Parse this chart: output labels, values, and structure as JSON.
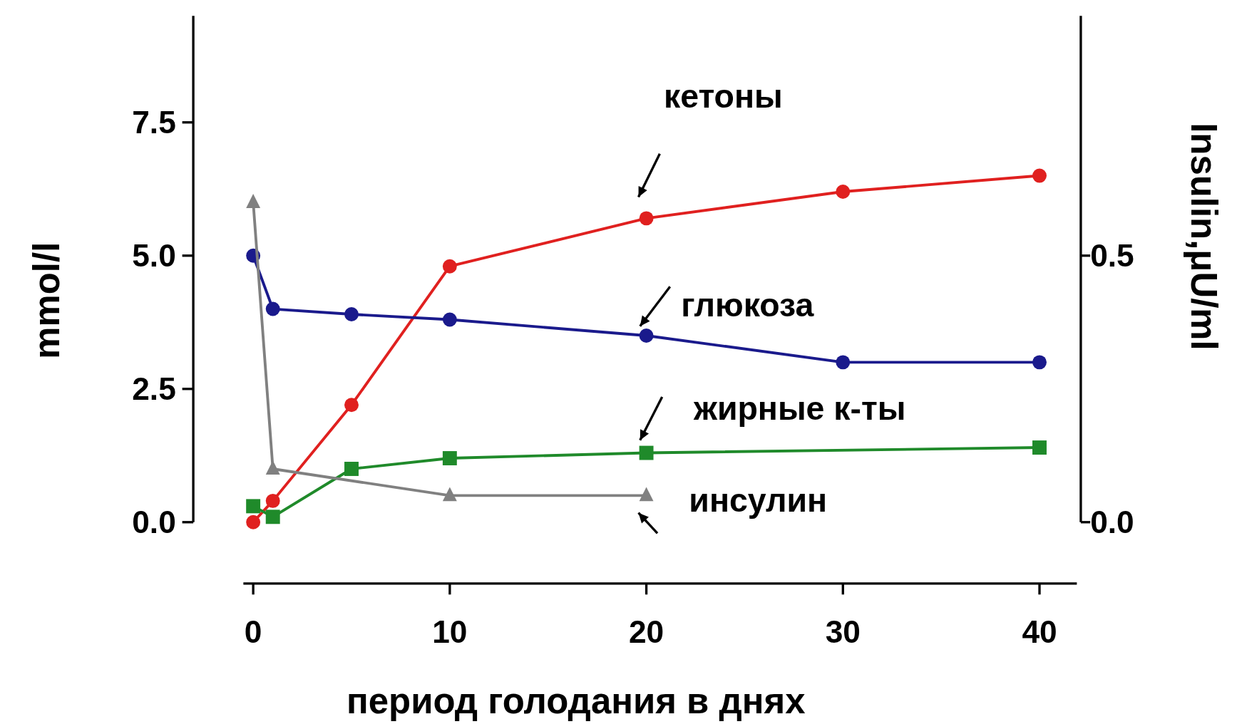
{
  "chart_data": {
    "type": "line",
    "xlabel": "период голодания в днях",
    "ylabel": "mmol/l",
    "y2label": "Insulin,μU/ml",
    "xlim": [
      -0.5,
      41.9
    ],
    "xticks": [
      0,
      10,
      20,
      30,
      40
    ],
    "ylim": [
      -1.15,
      9.5
    ],
    "yticks": [
      {
        "value": 0,
        "label": "0.0"
      },
      2.5,
      {
        "value": 5,
        "label": "5.0"
      },
      7.5
    ],
    "y2lim": [
      -0.115,
      0.95
    ],
    "y2ticks": [
      {
        "value": 0,
        "label": "0.0"
      },
      0.5
    ],
    "grid": false,
    "line_style": "solid",
    "series": [
      {
        "name": "кетоны",
        "color": "#e0201f",
        "marker": "circle",
        "x": [
          0,
          1,
          5,
          10,
          20,
          30,
          40
        ],
        "values": [
          0,
          0.4,
          2.2,
          4.8,
          5.7,
          6.2,
          6.5
        ]
      },
      {
        "name": "глюкоза",
        "color": "#1a1a8c",
        "marker": "circle",
        "x": [
          0,
          1,
          5,
          10,
          20,
          30,
          40
        ],
        "values": [
          5.0,
          4.0,
          3.9,
          3.8,
          3.5,
          3.0,
          3.0
        ]
      },
      {
        "name": "жирные к-ты",
        "color": "#1f8a2a",
        "marker": "square",
        "x": [
          0,
          1,
          5,
          10,
          20,
          40
        ],
        "values": [
          0.3,
          0.1,
          1.0,
          1.2,
          1.3,
          1.4
        ]
      },
      {
        "name": "инсулин",
        "color": "#808080",
        "marker": "triangle",
        "axis": "y2",
        "x": [
          0,
          1,
          10,
          20
        ],
        "values": [
          0.6,
          0.1,
          0.05,
          0.05
        ]
      }
    ]
  }
}
